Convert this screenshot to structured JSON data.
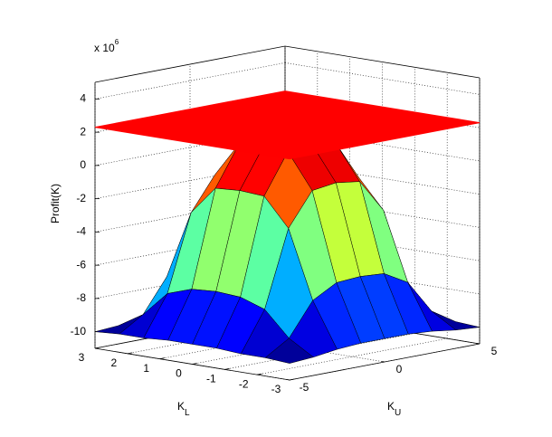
{
  "chart_data": {
    "type": "surface",
    "zlabel": "Profit(K)",
    "xlabel": "K",
    "xlabel_sub": "L",
    "ylabel": "K",
    "ylabel_sub": "U",
    "z_multiplier": "x 10",
    "z_exponent": "6",
    "x": [
      -3,
      -2.25,
      -1.5,
      -0.75,
      0,
      0.75,
      1.5,
      2.25,
      3
    ],
    "y": [
      -5,
      -3.75,
      -2.5,
      -1.25,
      0,
      1.25,
      2.5,
      3.75,
      5
    ],
    "z": [
      [
        -10,
        -9.9,
        -9.7,
        -9.6,
        -9.6,
        -9.6,
        -9.7,
        -9.9,
        -10
      ],
      [
        -9.9,
        -9,
        -7,
        -6.2,
        -6.1,
        -6.2,
        -7,
        -9,
        -9.9
      ],
      [
        -9.9,
        -7.5,
        -2.9,
        -0.9,
        -0.7,
        -0.9,
        -2.9,
        -7.5,
        -9.9
      ],
      [
        -9.8,
        -7,
        -1.2,
        1.2,
        1.4,
        1.2,
        -1.2,
        -7,
        -9.8
      ],
      [
        -9.8,
        -6.9,
        -1.1,
        1.3,
        1.5,
        1.3,
        -1.1,
        -6.9,
        -9.8
      ],
      [
        -9.8,
        -7,
        -1.2,
        1.2,
        1.4,
        1.2,
        -1.2,
        -7,
        -9.8
      ],
      [
        -9.9,
        -7.5,
        -2.9,
        -0.9,
        -0.7,
        -0.9,
        -2.9,
        -7.5,
        -9.9
      ],
      [
        -9.9,
        -9,
        -7,
        -6.2,
        -6.1,
        -6.2,
        -7,
        -9,
        -9.9
      ],
      [
        -10,
        -9.9,
        -9.7,
        -9.6,
        -9.6,
        -9.6,
        -9.7,
        -9.9,
        -10
      ]
    ],
    "colormap": "jet",
    "edge_color": "#000000",
    "plane": {
      "z": 2.3,
      "color": "#ff0000"
    },
    "xlim": [
      -3,
      3
    ],
    "ylim": [
      -5,
      5
    ],
    "zlim": [
      -11,
      5
    ],
    "xticks": [
      -3,
      -2,
      -1,
      0,
      1,
      2,
      3
    ],
    "yticks": [
      -5,
      0,
      5
    ],
    "zticks": [
      -10,
      -8,
      -6,
      -4,
      -2,
      0,
      2,
      4
    ],
    "grid": true
  }
}
